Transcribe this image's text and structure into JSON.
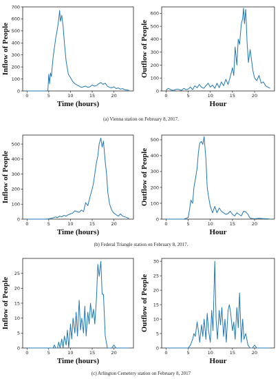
{
  "captions": [
    "(a)  Vienna station on February 8, 2017.",
    "(b) Federal Triangle station on February 8, 2017.",
    "(c)  Arlington Cemetery station on February 8, 2017"
  ],
  "chart_data": [
    {
      "type": "line",
      "panel": "a-inflow",
      "xlabel": "Time (hours)",
      "ylabel": "Inflow of People",
      "xlim": [
        -1,
        24.5
      ],
      "ylim": [
        0,
        700
      ],
      "xticks": [
        0,
        5,
        10,
        15,
        20
      ],
      "yticks": [
        0,
        100,
        200,
        300,
        400,
        500,
        600,
        700
      ],
      "color": "#1f77b4",
      "x": [
        0,
        1,
        2,
        3,
        4,
        4.8,
        5,
        5.2,
        5.4,
        5.6,
        5.8,
        6,
        6.3,
        6.6,
        7,
        7.3,
        7.5,
        7.7,
        8,
        8.3,
        8.6,
        9,
        9.5,
        10,
        10.5,
        11,
        11.5,
        12,
        12.5,
        13,
        13.5,
        14,
        14.5,
        15,
        15.5,
        16,
        16.5,
        17,
        17.5,
        18,
        18.5,
        19,
        19.5,
        20,
        20.5,
        21,
        21.5,
        22,
        22.5,
        23,
        23.5
      ],
      "values": [
        0,
        0,
        0,
        0,
        0,
        2,
        140,
        60,
        150,
        120,
        200,
        280,
        360,
        440,
        520,
        600,
        670,
        580,
        630,
        540,
        400,
        250,
        140,
        110,
        80,
        60,
        50,
        40,
        30,
        35,
        40,
        30,
        35,
        50,
        40,
        45,
        60,
        70,
        55,
        65,
        40,
        30,
        25,
        35,
        20,
        25,
        15,
        20,
        10,
        8,
        5
      ]
    },
    {
      "type": "line",
      "panel": "a-outflow",
      "xlabel": "Hour",
      "ylabel": "Outflow of People",
      "xlim": [
        -1,
        24.5
      ],
      "ylim": [
        0,
        650
      ],
      "xticks": [
        0,
        5,
        10,
        15,
        20
      ],
      "yticks": [
        0,
        100,
        200,
        300,
        400,
        500,
        600
      ],
      "color": "#1f77b4",
      "x": [
        0,
        0.5,
        1,
        1.5,
        2,
        2.5,
        3,
        3.5,
        4,
        4.5,
        5,
        5.5,
        6,
        6.5,
        7,
        7.5,
        8,
        8.5,
        9,
        9.5,
        10,
        10.5,
        11,
        11.5,
        12,
        12.5,
        13,
        13.5,
        14,
        14.5,
        15,
        15.3,
        15.6,
        16,
        16.3,
        16.6,
        17,
        17.3,
        17.5,
        17.7,
        18,
        18.3,
        18.6,
        19,
        19.3,
        19.6,
        20,
        20.5,
        21,
        21.5,
        22,
        22.5,
        23,
        23.5
      ],
      "values": [
        5,
        20,
        10,
        5,
        8,
        15,
        10,
        5,
        20,
        10,
        15,
        30,
        10,
        40,
        25,
        50,
        30,
        20,
        40,
        60,
        30,
        45,
        20,
        60,
        25,
        70,
        40,
        90,
        50,
        110,
        180,
        120,
        340,
        200,
        400,
        360,
        520,
        560,
        640,
        520,
        630,
        380,
        220,
        320,
        240,
        160,
        100,
        80,
        120,
        60,
        70,
        40,
        30,
        20
      ]
    },
    {
      "type": "line",
      "panel": "b-inflow",
      "xlabel": "Time (hours)",
      "ylabel": "Inflow of People",
      "xlim": [
        -1,
        24.5
      ],
      "ylim": [
        0,
        560
      ],
      "xticks": [
        0,
        5,
        10,
        15,
        20
      ],
      "yticks": [
        0,
        100,
        200,
        300,
        400,
        500
      ],
      "color": "#1f77b4",
      "x": [
        0,
        1,
        2,
        3,
        4,
        5,
        5.5,
        6,
        6.5,
        7,
        7.5,
        8,
        8.5,
        9,
        9.5,
        10,
        10.5,
        11,
        11.5,
        12,
        12.5,
        13,
        13.5,
        14,
        14.5,
        15,
        15.3,
        15.6,
        16,
        16.3,
        16.6,
        17,
        17.3,
        17.6,
        18,
        18.3,
        18.6,
        19,
        19.5,
        20,
        20.5,
        21,
        21.5,
        22,
        22.5,
        23,
        23.5
      ],
      "values": [
        0,
        0,
        0,
        0,
        0,
        2,
        5,
        8,
        15,
        10,
        20,
        15,
        25,
        20,
        30,
        35,
        40,
        55,
        50,
        45,
        60,
        50,
        110,
        90,
        150,
        200,
        240,
        300,
        380,
        420,
        500,
        540,
        480,
        520,
        380,
        300,
        180,
        100,
        60,
        40,
        30,
        20,
        35,
        20,
        15,
        10,
        5
      ]
    },
    {
      "type": "line",
      "panel": "b-outflow",
      "xlabel": "Hour",
      "ylabel": "Outflow of People",
      "xlim": [
        -1,
        24.5
      ],
      "ylim": [
        0,
        530
      ],
      "xticks": [
        0,
        5,
        10,
        15,
        20
      ],
      "yticks": [
        0,
        100,
        200,
        300,
        400,
        500
      ],
      "color": "#1f77b4",
      "x": [
        0,
        1,
        2,
        3,
        4,
        5,
        5.3,
        5.6,
        6,
        6.3,
        6.6,
        7,
        7.3,
        7.6,
        8,
        8.3,
        8.6,
        9,
        9.3,
        9.6,
        10,
        10.5,
        11,
        11.5,
        12,
        12.5,
        13,
        13.5,
        14,
        14.5,
        15,
        15.5,
        16,
        16.5,
        17,
        17.5,
        18,
        18.5,
        19,
        20,
        21,
        22,
        23,
        23.5
      ],
      "values": [
        0,
        0,
        0,
        0,
        0,
        10,
        60,
        120,
        100,
        200,
        250,
        320,
        420,
        480,
        490,
        470,
        520,
        380,
        200,
        140,
        80,
        40,
        80,
        40,
        70,
        50,
        40,
        30,
        35,
        50,
        30,
        20,
        40,
        30,
        20,
        50,
        45,
        30,
        5,
        2,
        5,
        3,
        2,
        0
      ]
    },
    {
      "type": "line",
      "panel": "c-inflow",
      "xlabel": "Time (hours)",
      "ylabel": "Inflow of People",
      "xlim": [
        -1,
        24.5
      ],
      "ylim": [
        0,
        30
      ],
      "xticks": [
        0,
        5,
        10,
        15,
        20
      ],
      "yticks": [
        0,
        5,
        10,
        15,
        20,
        25
      ],
      "color": "#1f77b4",
      "x": [
        0,
        1,
        2,
        3,
        4,
        5,
        6,
        6.3,
        6.6,
        7,
        7.3,
        7.6,
        8,
        8.3,
        8.6,
        9,
        9.3,
        9.6,
        10,
        10.3,
        10.6,
        11,
        11.3,
        11.6,
        12,
        12.3,
        12.6,
        13,
        13.3,
        13.6,
        14,
        14.3,
        14.6,
        15,
        15.3,
        15.6,
        16,
        16.3,
        16.6,
        17,
        17.3,
        17.6,
        18,
        18.5,
        19,
        19.5,
        20,
        20.5,
        21,
        22,
        23,
        23.5
      ],
      "values": [
        0,
        0,
        0,
        0,
        0,
        0,
        0,
        1,
        0,
        0,
        2,
        0,
        3,
        0,
        4,
        1,
        6,
        0,
        8,
        3,
        10,
        5,
        12,
        4,
        16,
        6,
        10,
        5,
        14,
        4,
        12,
        8,
        15,
        10,
        13,
        8,
        17,
        28,
        24,
        29,
        18,
        18,
        4,
        0,
        0,
        0,
        1,
        0,
        0,
        0,
        0,
        0
      ]
    },
    {
      "type": "line",
      "panel": "c-outflow",
      "xlabel": "Hour",
      "ylabel": "Outflow of People",
      "xlim": [
        -1,
        24.5
      ],
      "ylim": [
        0,
        31
      ],
      "xticks": [
        0,
        5,
        10,
        15,
        20
      ],
      "yticks": [
        0,
        5,
        10,
        15,
        20,
        25,
        30
      ],
      "color": "#1f77b4",
      "x": [
        0,
        1,
        2,
        3,
        4,
        5,
        5.5,
        6,
        6.3,
        6.6,
        7,
        7.3,
        7.6,
        8,
        8.3,
        8.6,
        9,
        9.3,
        9.6,
        10,
        10.3,
        10.6,
        11,
        11.3,
        11.6,
        12,
        12.3,
        12.6,
        13,
        13.3,
        13.6,
        14,
        14.3,
        14.6,
        15,
        15.3,
        15.6,
        16,
        16.3,
        16.6,
        17,
        17.3,
        17.6,
        18,
        18.5,
        19,
        19.5,
        20,
        20.5,
        21,
        22,
        23,
        23.5
      ],
      "values": [
        0,
        0,
        0,
        0,
        0,
        0,
        1,
        3,
        5,
        4,
        9,
        6,
        2,
        8,
        4,
        10,
        3,
        12,
        6,
        2,
        13,
        6,
        30,
        10,
        3,
        13,
        8,
        14,
        4,
        10,
        2,
        13,
        15,
        12,
        6,
        9,
        3,
        14,
        7,
        19,
        2,
        10,
        3,
        5,
        1,
        0,
        0,
        1,
        0,
        0,
        0,
        0,
        0
      ]
    }
  ]
}
